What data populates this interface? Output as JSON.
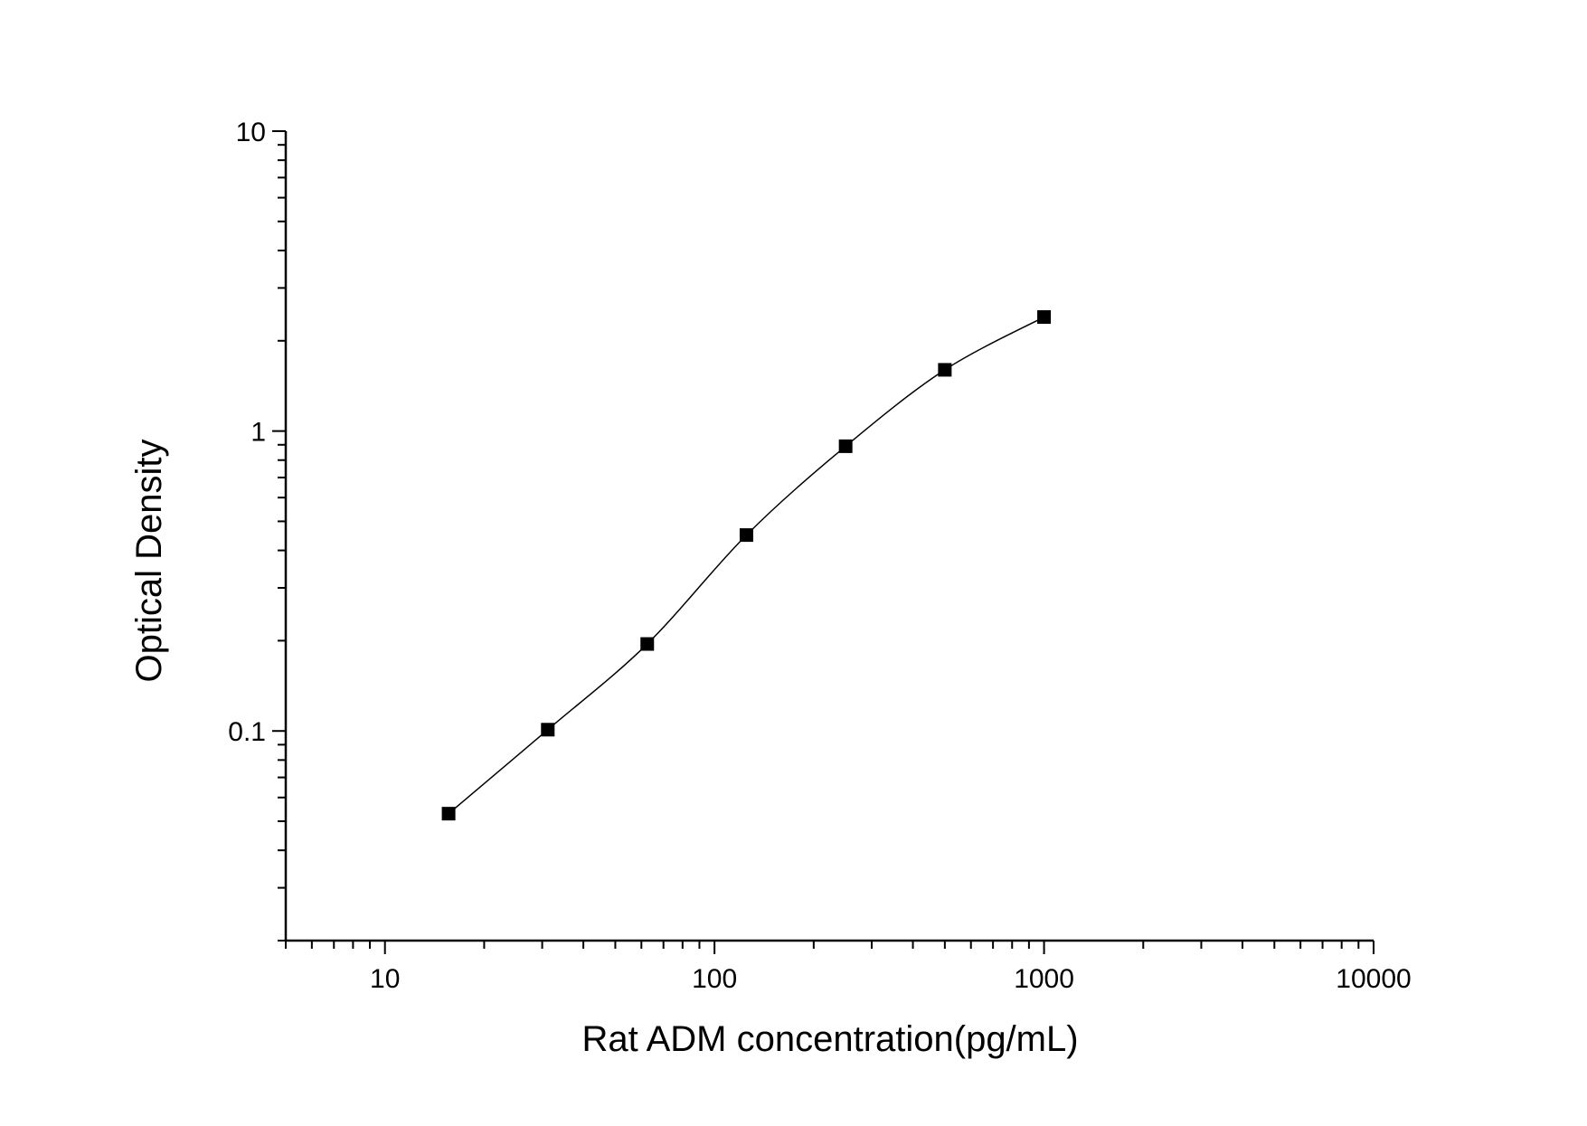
{
  "chart_data": {
    "type": "scatter",
    "title": "",
    "xlabel": "Rat ADM concentration(pg/mL)",
    "ylabel": "Optical Density",
    "x_scale": "log",
    "y_scale": "log",
    "xlim": [
      5,
      10000
    ],
    "ylim": [
      0.02,
      10
    ],
    "x_ticks": [
      {
        "value": 10,
        "label": "10"
      },
      {
        "value": 100,
        "label": "100"
      },
      {
        "value": 1000,
        "label": "1000"
      },
      {
        "value": 10000,
        "label": "10000"
      }
    ],
    "y_ticks": [
      {
        "value": 0.1,
        "label": "0.1"
      },
      {
        "value": 1,
        "label": "1"
      },
      {
        "value": 10,
        "label": "10"
      }
    ],
    "grid": false,
    "legend": "none",
    "marker": "square",
    "marker_color": "#000000",
    "curve": "smooth fitted line through points",
    "line_color": "#000000",
    "series": [
      {
        "x": [
          15.6,
          31.2,
          62.5,
          125,
          250,
          500,
          1000
        ],
        "y": [
          0.053,
          0.101,
          0.195,
          0.45,
          0.89,
          1.6,
          2.4
        ]
      }
    ]
  }
}
